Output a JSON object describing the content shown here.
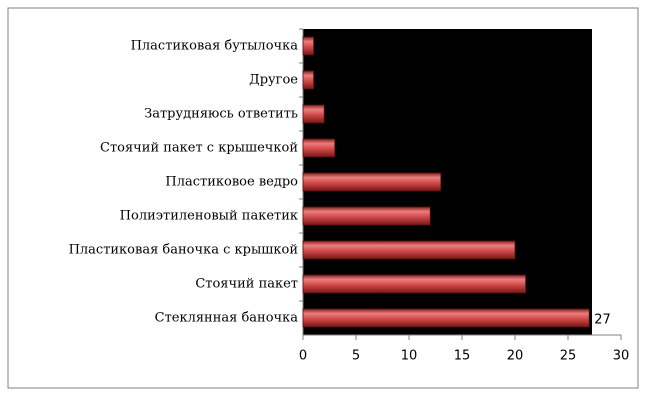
{
  "chart_data": {
    "type": "bar",
    "orientation": "horizontal",
    "categories": [
      "Пластиковая бутылочка",
      "Другое",
      "Затрудняюсь ответить",
      "Стоячий пакет с крышечкой",
      "Пластиковое ведро",
      "Полиэтиленовый пакетик",
      "Пластиковая баночка с крышкой",
      "Стоячий пакет",
      "Стеклянная баночка"
    ],
    "values": [
      1,
      1,
      2,
      3,
      13,
      12,
      20,
      21,
      27
    ],
    "value_labels": [
      null,
      null,
      null,
      null,
      null,
      null,
      null,
      null,
      "27"
    ],
    "color": "#d95050",
    "xlim": [
      0,
      30
    ],
    "xticks": [
      0,
      5,
      10,
      15,
      20,
      25,
      30
    ]
  }
}
